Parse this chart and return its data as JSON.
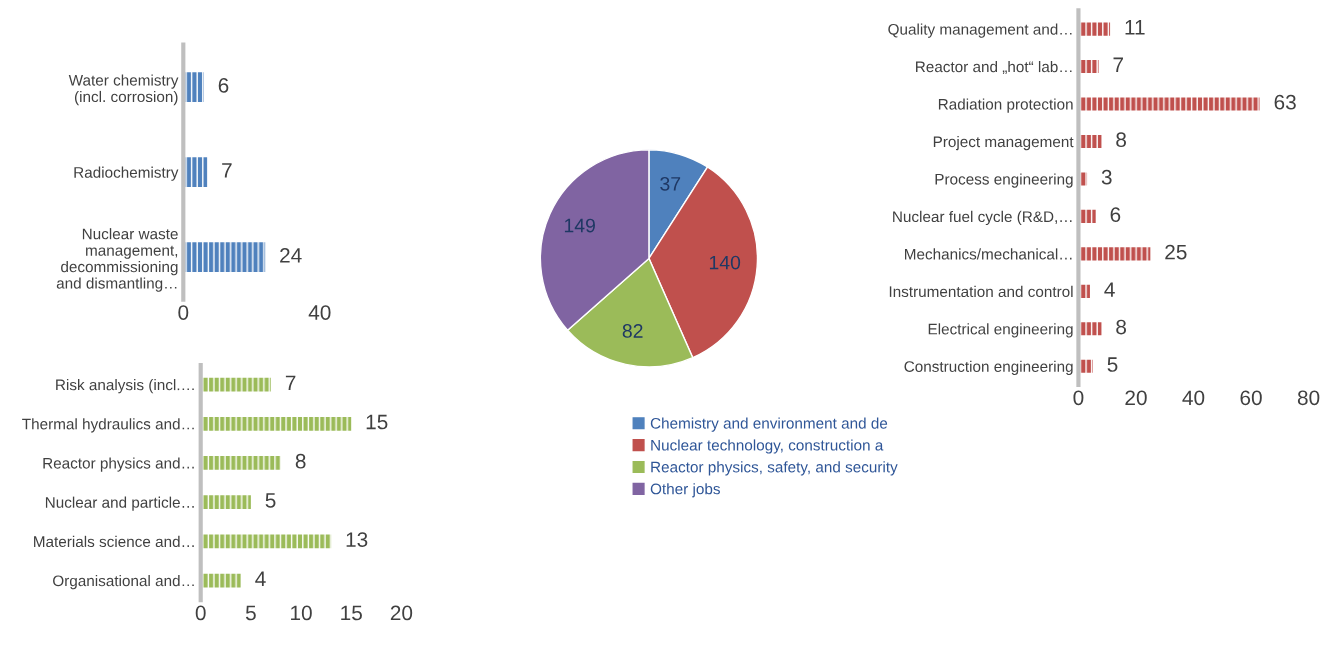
{
  "chart_data": [
    {
      "type": "bar",
      "orientation": "horizontal",
      "categories": [
        "Water chemistry\n(incl. corrosion)",
        "Radiochemistry",
        "Nuclear waste\nmanagement,\ndecommissioning\nand dismantling…"
      ],
      "values": [
        6,
        7,
        24
      ],
      "color": "#4f81bd",
      "xlim": [
        0,
        40
      ],
      "xticks": [
        0,
        40
      ],
      "data_labels": true,
      "grid": false
    },
    {
      "type": "pie",
      "categories": [
        "Chemistry and environment and de",
        "Nuclear technology, construction a",
        "Reactor physics, safety, and security",
        "Other jobs"
      ],
      "values": [
        37,
        140,
        82,
        149
      ],
      "colors": [
        "#4f81bd",
        "#c0504d",
        "#9bbb59",
        "#8064a2"
      ],
      "data_labels": true,
      "legend": "bottom"
    },
    {
      "type": "bar",
      "orientation": "horizontal",
      "categories": [
        "Quality management and…",
        "Reactor and „hot“ lab…",
        "Radiation protection",
        "Project management",
        "Process engineering",
        "Nuclear fuel cycle (R&D,…",
        "Mechanics/mechanical…",
        "Instrumentation and control",
        "Electrical engineering",
        "Construction engineering"
      ],
      "values": [
        11,
        7,
        63,
        8,
        3,
        6,
        25,
        4,
        8,
        5
      ],
      "color": "#c0504d",
      "xlim": [
        0,
        80
      ],
      "xticks": [
        0,
        20,
        40,
        60,
        80
      ],
      "data_labels": true,
      "grid": false
    },
    {
      "type": "bar",
      "orientation": "horizontal",
      "categories": [
        "Risk analysis (incl.…",
        "Thermal hydraulics and…",
        "Reactor physics and…",
        "Nuclear and particle…",
        "Materials science and…",
        "Organisational and…"
      ],
      "values": [
        7,
        15,
        8,
        5,
        13,
        4
      ],
      "color": "#9bbb59",
      "xlim": [
        0,
        20
      ],
      "xticks": [
        0,
        5,
        10,
        15,
        20
      ],
      "data_labels": true,
      "grid": false
    }
  ]
}
